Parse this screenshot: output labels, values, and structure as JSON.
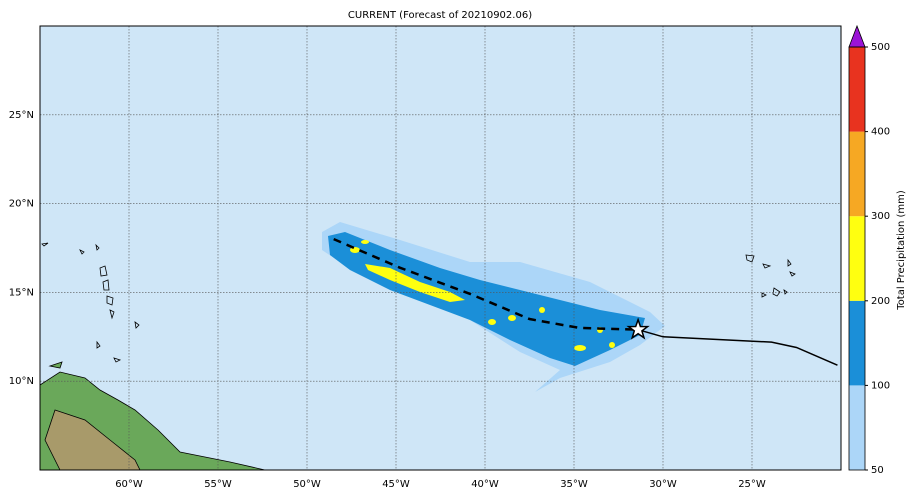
{
  "map": {
    "title": "CURRENT (Forecast of 20210902.06)",
    "xlim": [
      -65,
      -20
    ],
    "ylim": [
      5,
      30
    ],
    "xticks": [
      {
        "value": -60,
        "label": "60°W"
      },
      {
        "value": -55,
        "label": "55°W"
      },
      {
        "value": -50,
        "label": "50°W"
      },
      {
        "value": -45,
        "label": "45°W"
      },
      {
        "value": -40,
        "label": "40°W"
      },
      {
        "value": -35,
        "label": "35°W"
      },
      {
        "value": -30,
        "label": "30°W"
      },
      {
        "value": -25,
        "label": "25°W"
      }
    ],
    "yticks": [
      {
        "value": 10,
        "label": "10°N"
      },
      {
        "value": 15,
        "label": "15°N"
      },
      {
        "value": 20,
        "label": "20°N"
      },
      {
        "value": 25,
        "label": "25°N"
      }
    ],
    "grid": true,
    "ocean_color": "#cfe6f7",
    "storm": {
      "lon": -31.4,
      "lat": 12.9
    },
    "forecast_track": {
      "lon": [
        -48.5,
        -44.8,
        -40.8,
        -37.5,
        -34.7,
        -31.4
      ],
      "lat": [
        18.0,
        16.4,
        14.9,
        13.5,
        13.0,
        12.9
      ]
    },
    "past_track": {
      "lon": [
        -31.4,
        -30,
        -23.9,
        -22.5,
        -20.2
      ],
      "lat": [
        12.9,
        12.5,
        12.2,
        11.9,
        10.9
      ]
    },
    "colorbar": {
      "label": "Total Precipitation (mm)",
      "ticks": [
        50,
        100,
        200,
        300,
        400,
        500
      ],
      "colors": [
        "#acd6f8",
        "#1b8fd8",
        "#ffff10",
        "#f6a823",
        "#e8331f"
      ],
      "extend_color": "#9b14d6"
    }
  }
}
